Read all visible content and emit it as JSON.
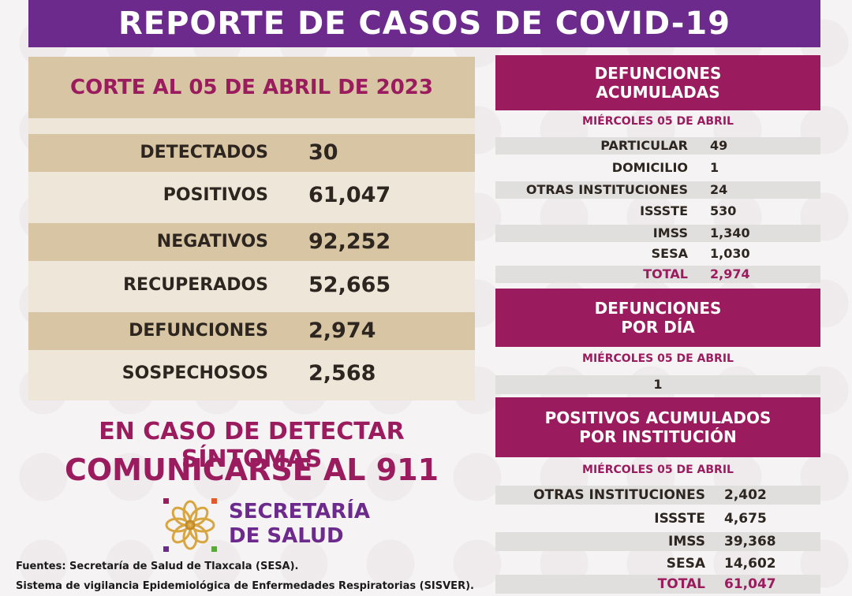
{
  "title": "REPORTE DE CASOS DE COVID-19",
  "corte": "CORTE AL 05 DE ABRIL DE 2023",
  "stats": [
    {
      "label": "DETECTADOS",
      "value": "30"
    },
    {
      "label": "POSITIVOS",
      "value": "61,047"
    },
    {
      "label": "NEGATIVOS",
      "value": "92,252"
    },
    {
      "label": "RECUPERADOS",
      "value": "52,665"
    },
    {
      "label": "DEFUNCIONES",
      "value": "2,974"
    },
    {
      "label": "SOSPECHOSOS",
      "value": "2,568"
    }
  ],
  "defunciones_acumuladas": {
    "header_line1": "DEFUNCIONES",
    "header_line2": "ACUMULADAS",
    "date": "MIÉRCOLES 05 DE ABRIL",
    "rows": [
      {
        "label": "PARTICULAR",
        "value": "49"
      },
      {
        "label": "DOMICILIO",
        "value": "1"
      },
      {
        "label": "OTRAS INSTITUCIONES",
        "value": "24"
      },
      {
        "label": "ISSSTE",
        "value": "530"
      },
      {
        "label": "IMSS",
        "value": "1,340"
      },
      {
        "label": "SESA",
        "value": "1,030"
      }
    ],
    "total_label": "TOTAL",
    "total_value": "2,974"
  },
  "defunciones_dia": {
    "header_line1": "DEFUNCIONES",
    "header_line2": "POR DÍA",
    "date": "MIÉRCOLES 05  DE ABRIL",
    "value": "1"
  },
  "positivos_institucion": {
    "header_line1": "POSITIVOS ACUMULADOS",
    "header_line2": "POR INSTITUCIÓN",
    "date": "MIÉRCOLES 05 DE ABRIL",
    "rows": [
      {
        "label": "OTRAS INSTITUCIONES",
        "value": "2,402"
      },
      {
        "label": "ISSSTE",
        "value": "4,675"
      },
      {
        "label": "IMSS",
        "value": "39,368"
      },
      {
        "label": "SESA",
        "value": "14,602"
      }
    ],
    "total_label": "TOTAL",
    "total_value": "61,047"
  },
  "warning_line1": "EN CASO DE DETECTAR SÍNTOMAS",
  "warning_line2": "COMUNICARSE AL 911",
  "logo_line1": "SECRETARÍA",
  "logo_line2": "DE SALUD",
  "fuente_line1": "Fuentes:  Secretaría de Salud de Tlaxcala (SESA).",
  "fuente_line2": "Sistema de vigilancia Epidemiológica de Enfermedades Respiratorias (SISVER).",
  "colors": {
    "purple": "#6b2a8c",
    "magenta": "#9b1c5e",
    "tan": "#d8c5a3",
    "cream": "#eee6d9",
    "grey": "#e1dede"
  },
  "logo_icon": "flower-logo-icon"
}
